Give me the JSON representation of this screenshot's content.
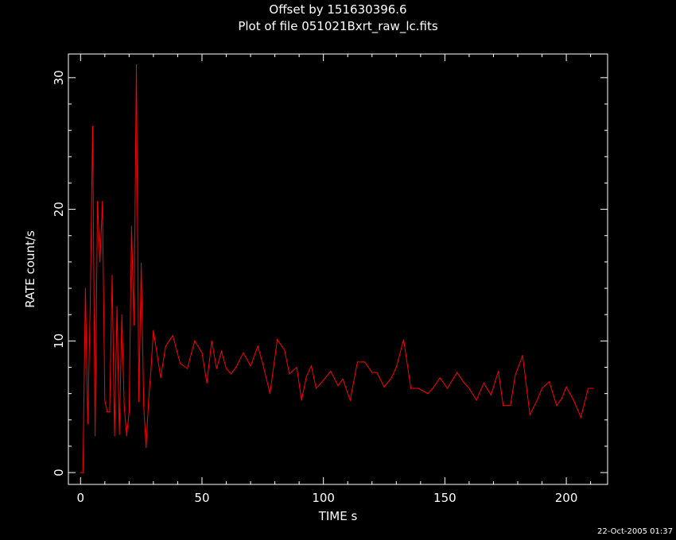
{
  "chart_data": {
    "type": "line",
    "title": "Offset by 151630396.6",
    "subtitle": "Plot of file 051021Bxrt_raw_lc.fits",
    "xlabel": "TIME   s",
    "ylabel": "RATE   count/s",
    "xlim": [
      -5,
      217
    ],
    "ylim": [
      -0.9,
      31.8
    ],
    "x_ticks": [
      0,
      50,
      100,
      150,
      200
    ],
    "y_ticks": [
      0,
      10,
      20,
      30
    ],
    "grid": false,
    "line_color": "#ff0000",
    "axes_color": "#ffffff",
    "background": "#000000",
    "timestamp": "22-Oct-2005 01:37",
    "series": [
      {
        "x": [
          0,
          1,
          2,
          3,
          4,
          5,
          6,
          7,
          8,
          9,
          10,
          11,
          12,
          13,
          14,
          15,
          16,
          17,
          18,
          19,
          20,
          21,
          22,
          23,
          24,
          25,
          26,
          27,
          28,
          29,
          30,
          33,
          35,
          38,
          41,
          44,
          47,
          50,
          52,
          54,
          56,
          58,
          60,
          62,
          64,
          67,
          70,
          73,
          75,
          78,
          81,
          84,
          86,
          89,
          91,
          93,
          95,
          97,
          99,
          103,
          106,
          108,
          111,
          114,
          117,
          120,
          122,
          125,
          128,
          130,
          133,
          136,
          139,
          143,
          145,
          148,
          151,
          155,
          158,
          160,
          163,
          166,
          169,
          172,
          174,
          177,
          179,
          182,
          185,
          188,
          190,
          193,
          196,
          198,
          200,
          203,
          206,
          209,
          211
        ],
        "values": [
          0,
          0,
          14,
          3.7,
          13,
          26.3,
          2.8,
          20.6,
          16,
          20.6,
          5.5,
          4.6,
          4.6,
          15,
          2.8,
          12.6,
          2.9,
          12,
          5,
          2.8,
          4.6,
          18.7,
          11.2,
          31,
          5.4,
          15.9,
          5.1,
          1.9,
          5.4,
          7.8,
          10.8,
          7.2,
          9.6,
          10.4,
          8.3,
          7.9,
          10,
          9.1,
          6.8,
          10,
          7.9,
          9.2,
          7.9,
          7.5,
          8,
          9.1,
          8.1,
          9.6,
          8.3,
          6,
          10.1,
          9.3,
          7.5,
          8,
          5.5,
          7.3,
          8.1,
          6.4,
          6.8,
          7.7,
          6.6,
          7.1,
          5.5,
          8.4,
          8.4,
          7.6,
          7.6,
          6.5,
          7.2,
          8,
          10.1,
          6.4,
          6.4,
          6,
          6.4,
          7.2,
          6.4,
          7.6,
          6.8,
          6.4,
          5.5,
          6.8,
          5.9,
          7.7,
          5.1,
          5.1,
          7.4,
          8.9,
          4.4,
          5.5,
          6.4,
          6.9,
          5.1,
          5.6,
          6.5,
          5.5,
          4.2,
          6.4,
          6.4
        ]
      }
    ]
  }
}
